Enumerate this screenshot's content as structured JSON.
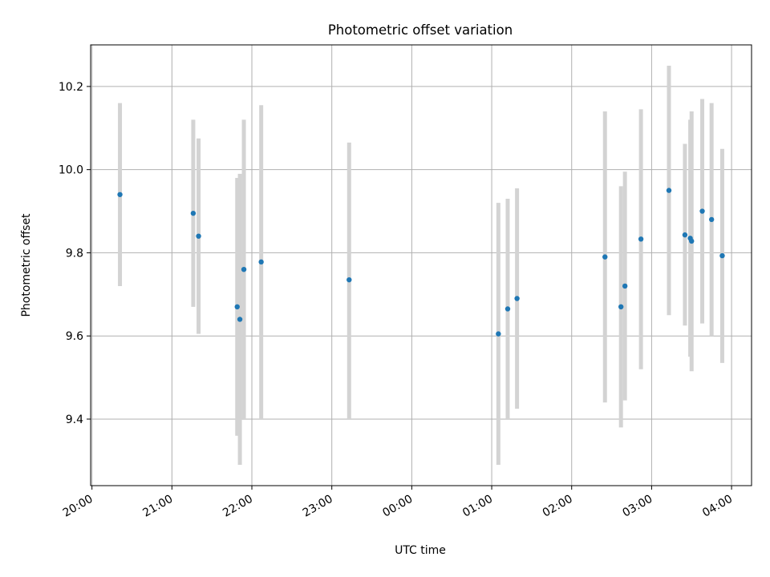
{
  "chart_data": {
    "type": "scatter",
    "title": "Photometric offset variation",
    "xlabel": "UTC time",
    "ylabel": "Photometric offset",
    "xlim": [
      "2000-01-01T19:59",
      "2000-01-02T04:15"
    ],
    "ylim": [
      9.24,
      10.3
    ],
    "grid": true,
    "x_ticks": [
      {
        "label": "20:00",
        "t": "2000-01-01T20:00"
      },
      {
        "label": "21:00",
        "t": "2000-01-01T21:00"
      },
      {
        "label": "22:00",
        "t": "2000-01-01T22:00"
      },
      {
        "label": "23:00",
        "t": "2000-01-01T23:00"
      },
      {
        "label": "00:00",
        "t": "2000-01-02T00:00"
      },
      {
        "label": "01:00",
        "t": "2000-01-02T01:00"
      },
      {
        "label": "02:00",
        "t": "2000-01-02T02:00"
      },
      {
        "label": "03:00",
        "t": "2000-01-02T03:00"
      },
      {
        "label": "04:00",
        "t": "2000-01-02T04:00"
      }
    ],
    "y_ticks": [
      {
        "label": "9.4",
        "v": 9.4
      },
      {
        "label": "9.6",
        "v": 9.6
      },
      {
        "label": "9.8",
        "v": 9.8
      },
      {
        "label": "10.0",
        "v": 10.0
      },
      {
        "label": "10.2",
        "v": 10.2
      }
    ],
    "points": [
      {
        "t": "2000-01-01T20:21",
        "y": 9.94,
        "lo": 9.72,
        "hi": 10.16
      },
      {
        "t": "2000-01-01T21:16",
        "y": 9.895,
        "lo": 9.67,
        "hi": 10.12
      },
      {
        "t": "2000-01-01T21:20",
        "y": 9.84,
        "lo": 9.605,
        "hi": 10.075
      },
      {
        "t": "2000-01-01T21:49",
        "y": 9.67,
        "lo": 9.36,
        "hi": 9.98
      },
      {
        "t": "2000-01-01T21:51",
        "y": 9.64,
        "lo": 9.29,
        "hi": 9.99
      },
      {
        "t": "2000-01-01T21:54",
        "y": 9.76,
        "lo": 9.4,
        "hi": 10.12
      },
      {
        "t": "2000-01-01T22:07",
        "y": 9.778,
        "lo": 9.4,
        "hi": 10.155
      },
      {
        "t": "2000-01-01T23:13",
        "y": 9.735,
        "lo": 9.4,
        "hi": 10.065
      },
      {
        "t": "2000-01-02T01:05",
        "y": 9.605,
        "lo": 9.29,
        "hi": 9.92
      },
      {
        "t": "2000-01-02T01:12",
        "y": 9.665,
        "lo": 9.4,
        "hi": 9.93
      },
      {
        "t": "2000-01-02T01:19",
        "y": 9.69,
        "lo": 9.425,
        "hi": 9.955
      },
      {
        "t": "2000-01-02T02:25",
        "y": 9.79,
        "lo": 9.44,
        "hi": 10.14
      },
      {
        "t": "2000-01-02T02:37",
        "y": 9.67,
        "lo": 9.38,
        "hi": 9.96
      },
      {
        "t": "2000-01-02T02:40",
        "y": 9.72,
        "lo": 9.445,
        "hi": 9.995
      },
      {
        "t": "2000-01-02T02:52",
        "y": 9.833,
        "lo": 9.52,
        "hi": 10.145
      },
      {
        "t": "2000-01-02T03:13",
        "y": 9.95,
        "lo": 9.65,
        "hi": 10.25
      },
      {
        "t": "2000-01-02T03:25",
        "y": 9.843,
        "lo": 9.625,
        "hi": 10.062
      },
      {
        "t": "2000-01-02T03:29",
        "y": 9.835,
        "lo": 9.55,
        "hi": 10.12
      },
      {
        "t": "2000-01-02T03:30",
        "y": 9.828,
        "lo": 9.515,
        "hi": 10.14
      },
      {
        "t": "2000-01-02T03:38",
        "y": 9.9,
        "lo": 9.63,
        "hi": 10.17
      },
      {
        "t": "2000-01-02T03:45",
        "y": 9.88,
        "lo": 9.6,
        "hi": 10.16
      },
      {
        "t": "2000-01-02T03:53",
        "y": 9.793,
        "lo": 9.535,
        "hi": 10.05
      }
    ],
    "colors": {
      "point": "#1f77b4",
      "errorbar": "#d3d3d3",
      "grid": "#b0b0b0",
      "axes": "#000000"
    }
  }
}
